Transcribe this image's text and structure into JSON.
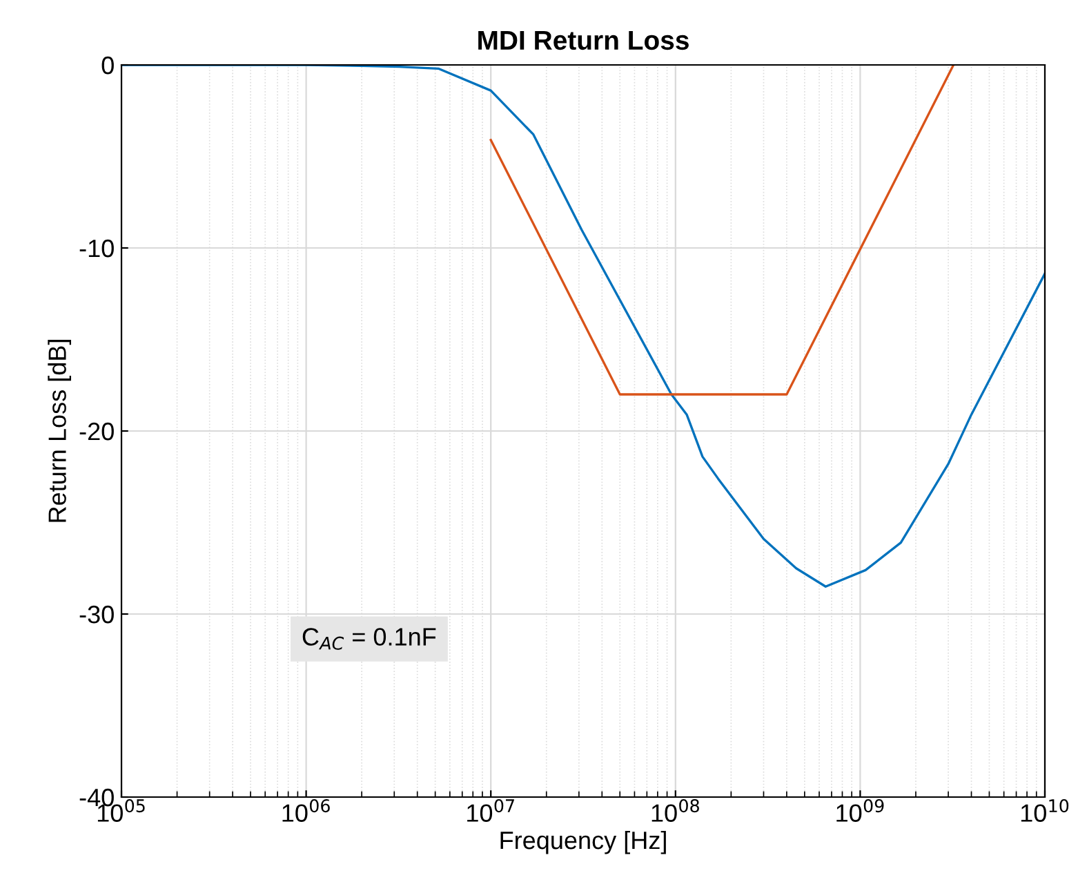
{
  "chart_data": {
    "type": "line",
    "title": "MDI Return Loss",
    "xlabel": "Frequency [Hz]",
    "ylabel": "Return Loss [dB]",
    "log": "x",
    "xlim": [
      100000,
      10000000000
    ],
    "ylim": [
      -40,
      0
    ],
    "xticks": [
      {
        "value": 100000,
        "label": "10$^{05}$"
      },
      {
        "value": 1000000,
        "label": "10$^{06}$"
      },
      {
        "value": 10000000,
        "label": "10$^{07}$"
      },
      {
        "value": 100000000,
        "label": "10$^{08}$"
      },
      {
        "value": 1000000000,
        "label": "10$^{09}$"
      },
      {
        "value": 10000000000,
        "label": "10$^{10}$"
      }
    ],
    "yticks": [
      -40,
      -30,
      -20,
      -10,
      0
    ],
    "grid": true,
    "line_style": "solid",
    "marker": "none",
    "series": [
      {
        "color": "#0072bd",
        "x": [
          100000,
          1000000,
          2000000,
          3200000,
          5200000,
          10000000,
          17000000,
          31000000,
          95000000,
          115000000,
          140000000,
          170000000,
          300000000,
          450000000,
          650000000,
          1070000000,
          1660000000,
          3000000000,
          4000000000,
          10000000000
        ],
        "values": [
          0,
          0,
          -0.05,
          -0.1,
          -0.2,
          -1.4,
          -3.8,
          -9,
          -18,
          -19.1,
          -21.4,
          -22.6,
          -25.9,
          -27.5,
          -28.5,
          -27.6,
          -26.1,
          -21.8,
          -19.1,
          -11.4
        ]
      },
      {
        "color": "#d95319",
        "x": [
          10000000,
          50000000,
          400000000,
          3200000000
        ],
        "values": [
          -4.1,
          -18,
          -18,
          0
        ]
      }
    ],
    "annotations": [
      "C$_{AC}$ = 0.1nF"
    ]
  }
}
